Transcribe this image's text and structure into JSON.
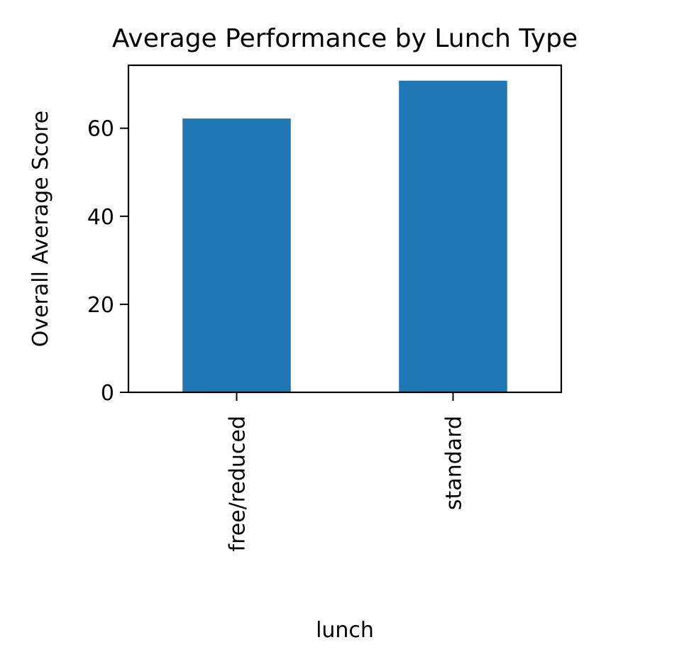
{
  "chart_data": {
    "type": "bar",
    "title": "Average Performance by Lunch Type",
    "xlabel": "lunch",
    "ylabel": "Overall Average Score",
    "categories": [
      "free/reduced",
      "standard"
    ],
    "values": [
      62.2,
      70.8
    ],
    "ylim": [
      0,
      74.3
    ],
    "yticks": [
      0,
      20,
      40,
      60
    ],
    "ytick_labels": [
      "0",
      "20",
      "40",
      "60"
    ],
    "bar_color": "#1f77b4",
    "grid": false,
    "legend": "none"
  }
}
